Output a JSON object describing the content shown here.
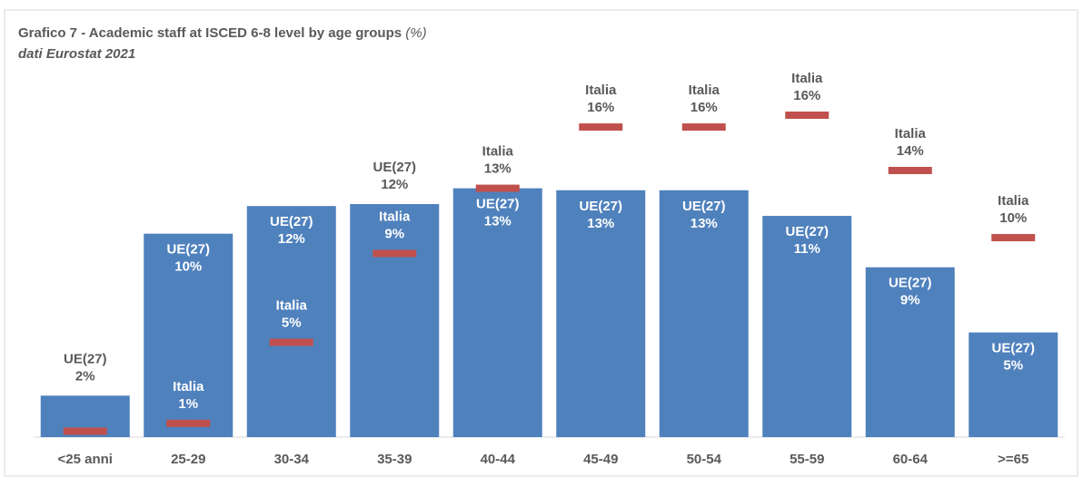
{
  "chart_data": {
    "type": "bar",
    "title": "Grafico 7 - Academic staff  at ISCED 6-8 level by age groups",
    "title_unit": "(%)",
    "subtitle": "dati Eurostat 2021",
    "categories": [
      "<25 anni",
      "25-29",
      "30-34",
      "35-39",
      "40-44",
      "45-49",
      "50-54",
      "55-59",
      "60-64",
      ">=65"
    ],
    "ylim": [
      0,
      18
    ],
    "series": [
      {
        "name": "UE(27)",
        "color": "#4f81bd",
        "values": [
          2.1,
          10.3,
          11.7,
          11.8,
          12.6,
          12.5,
          12.5,
          11.2,
          8.6,
          5.3
        ],
        "value_labels": [
          "2%",
          "10%",
          "12%",
          "12%",
          "13%",
          "13%",
          "13%",
          "11%",
          "9%",
          "5%"
        ]
      },
      {
        "name": "Italia",
        "color": "#c0504d",
        "values": [
          0.3,
          0.7,
          4.8,
          9.3,
          12.6,
          15.7,
          15.7,
          16.3,
          13.5,
          10.1
        ],
        "value_labels": [
          null,
          "1%",
          "5%",
          "9%",
          "13%",
          "16%",
          "16%",
          "16%",
          "14%",
          "10%"
        ]
      }
    ]
  }
}
